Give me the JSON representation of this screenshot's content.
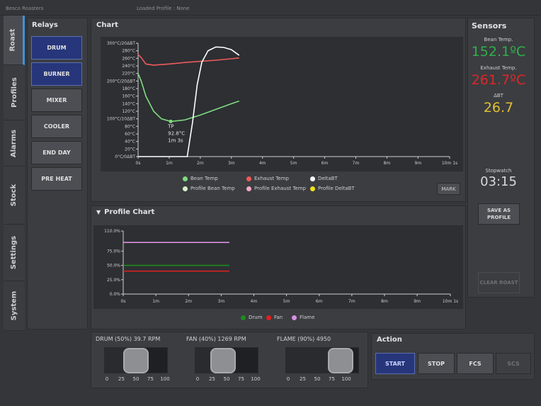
{
  "app": {
    "name": "Besco Roasters",
    "loaded_profile": "Loaded Profile : None"
  },
  "tabs": [
    "Roast",
    "Profiles",
    "Alarms",
    "Stock",
    "Settings",
    "System"
  ],
  "relays": {
    "title": "Relays",
    "buttons": [
      {
        "label": "DRUM",
        "on": true
      },
      {
        "label": "BURNER",
        "on": true
      },
      {
        "label": "MIXER",
        "on": false
      },
      {
        "label": "COOLER",
        "on": false
      },
      {
        "label": "END DAY",
        "on": false
      },
      {
        "label": "PRE HEAT",
        "on": false
      }
    ]
  },
  "chart": {
    "title": "Chart",
    "y_ticks": [
      "300°C/20ΔBT",
      "280°C",
      "260°C",
      "240°C",
      "220°C",
      "200°C/20ΔBT",
      "180°C",
      "160°C",
      "140°C",
      "120°C",
      "100°C/10ΔBT",
      "80°C",
      "60°C",
      "40°C",
      "20°C",
      "0°C/0ΔBT"
    ],
    "x_ticks": [
      "0s",
      "1m",
      "2m",
      "3m",
      "4m",
      "5m",
      "6m",
      "7m",
      "8m",
      "9m",
      "10m 1s"
    ],
    "tp_annotation": [
      "TP",
      "92.8°C",
      "1m 3s"
    ],
    "legend": [
      {
        "label": "Bean Temp",
        "color": "#7fdc7f"
      },
      {
        "label": "Exhaust Temp",
        "color": "#ef5a5a"
      },
      {
        "label": "DeltaBT",
        "color": "#ffffff"
      },
      {
        "label": "Profile Bean Temp",
        "color": "#d8f0c8"
      },
      {
        "label": "Profile Exhaust Temp",
        "color": "#f4a9c0"
      },
      {
        "label": "Profile DeltaBT",
        "color": "#f2e21a"
      }
    ],
    "mark_label": "MARK"
  },
  "chart_data": [
    {
      "type": "line",
      "x_unit": "min",
      "xlim": [
        0,
        10.0167
      ],
      "ylim": [
        0,
        300
      ],
      "series": [
        {
          "name": "Bean Temp",
          "color": "#7fdc7f",
          "x": [
            0,
            0.1,
            0.25,
            0.5,
            0.75,
            1.05,
            1.5,
            2,
            2.5,
            3,
            3.25
          ],
          "y": [
            220,
            200,
            160,
            120,
            100,
            93,
            97,
            110,
            125,
            140,
            147
          ]
        },
        {
          "name": "Exhaust Temp",
          "color": "#ef5a5a",
          "x": [
            0,
            0.1,
            0.25,
            0.5,
            1,
            1.5,
            2,
            2.5,
            3,
            3.25
          ],
          "y": [
            270,
            262,
            245,
            242,
            245,
            249,
            252,
            255,
            259,
            261
          ]
        },
        {
          "name": "DeltaBT",
          "color": "#ffffff",
          "x": [
            0,
            1,
            1.58,
            1.75,
            1.9,
            2.05,
            2.25,
            2.5,
            2.75,
            3,
            3.25
          ],
          "y": [
            0,
            0,
            0,
            90,
            190,
            250,
            280,
            290,
            289,
            283,
            268
          ]
        }
      ],
      "annotation": {
        "x": 1.05,
        "y": 93
      }
    },
    {
      "type": "line",
      "title": "Profile Chart",
      "x_unit": "min",
      "y_ticks": [
        "110.0%",
        "75.0%",
        "50.0%",
        "25.0%",
        "0.0%"
      ],
      "x_ticks": [
        "0s",
        "1m",
        "2m",
        "3m",
        "4m",
        "5m",
        "6m",
        "7m",
        "8m",
        "9m",
        "10m 1s"
      ],
      "xlim": [
        0,
        10.0167
      ],
      "ylim": [
        0,
        110
      ],
      "series": [
        {
          "name": "Drum",
          "color": "#1f8a1f",
          "x": [
            0,
            3.25
          ],
          "y": [
            50,
            50
          ]
        },
        {
          "name": "Fan",
          "color": "#e02020",
          "x": [
            0,
            3.25
          ],
          "y": [
            40,
            40
          ]
        },
        {
          "name": "Flame",
          "color": "#d890e0",
          "x": [
            0,
            3.25
          ],
          "y": [
            90,
            90
          ]
        }
      ]
    }
  ],
  "profile_chart": {
    "title": "Profile Chart",
    "collapse_icon": "triangle-down-icon"
  },
  "sensors": {
    "title": "Sensors",
    "bean": {
      "label": "Bean Temp.",
      "value": "152.1ºC",
      "color": "#2fb04a"
    },
    "exhaust": {
      "label": "Exhaust Temp.",
      "value": "261.7ºC",
      "color": "#e02626"
    },
    "dbt": {
      "label": "ΔBT",
      "value": "26.7",
      "color": "#e0c030"
    },
    "stopwatch": {
      "label": "Stopwatch",
      "value": "03:15"
    },
    "save_label": "SAVE AS PROFILE",
    "clear_label": "CLEAR ROAST"
  },
  "sliders": [
    {
      "title": "DRUM (50%) 39.7 RPM",
      "level": 50
    },
    {
      "title": "FAN (40%) 1269 RPM",
      "level": 40
    },
    {
      "title": "FLAME (90%) 4950",
      "level": 90
    }
  ],
  "slider_scale": [
    "0",
    "25",
    "50",
    "75",
    "100"
  ],
  "action": {
    "title": "Action",
    "buttons": [
      "START",
      "STOP",
      "FCS",
      "SCS"
    ]
  }
}
